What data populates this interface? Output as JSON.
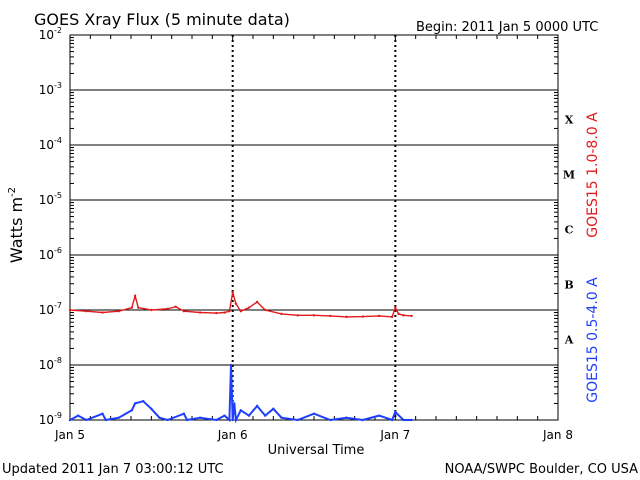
{
  "header": {
    "title": "GOES Xray Flux (5 minute data)",
    "begin": "Begin:  2011 Jan 5 0000 UTC"
  },
  "footer": {
    "updated": "Updated 2011 Jan  7 03:00:12 UTC",
    "source": "NOAA/SWPC Boulder, CO USA"
  },
  "chart_data": {
    "type": "line",
    "title": "GOES Xray Flux (5 minute data)",
    "xlabel": "Universal Time",
    "ylabel": "Watts m",
    "ylabel_exp": "-2",
    "yscale": "log",
    "ylim": [
      1e-09,
      0.01
    ],
    "xlim_days": [
      0,
      3
    ],
    "x_ticks": [
      {
        "day": 0,
        "label": "Jan 5"
      },
      {
        "day": 1,
        "label": "Jan 6"
      },
      {
        "day": 2,
        "label": "Jan 7"
      },
      {
        "day": 3,
        "label": "Jan 8"
      }
    ],
    "y_ticks": [
      {
        "exp": -2,
        "base": "10",
        "sup": "-2"
      },
      {
        "exp": -3,
        "base": "10",
        "sup": "-3"
      },
      {
        "exp": -4,
        "base": "10",
        "sup": "-4"
      },
      {
        "exp": -5,
        "base": "10",
        "sup": "-5"
      },
      {
        "exp": -6,
        "base": "10",
        "sup": "-6"
      },
      {
        "exp": -7,
        "base": "10",
        "sup": "-7"
      },
      {
        "exp": -8,
        "base": "10",
        "sup": "-8"
      },
      {
        "exp": -9,
        "base": "10",
        "sup": "-9"
      }
    ],
    "flare_classes": [
      {
        "label": "X",
        "exp": -4
      },
      {
        "label": "M",
        "exp": -5
      },
      {
        "label": "C",
        "exp": -6
      },
      {
        "label": "B",
        "exp": -7
      },
      {
        "label": "A",
        "exp": -8
      }
    ],
    "grid": "horizontal lines at each decade; dotted vertical lines at day boundaries",
    "series": [
      {
        "name": "GOES15 1.0-8.0 A",
        "color": "#e31a1c",
        "x_days": [
          0.0,
          0.1,
          0.2,
          0.3,
          0.38,
          0.4,
          0.42,
          0.5,
          0.6,
          0.65,
          0.7,
          0.8,
          0.9,
          0.95,
          0.98,
          1.0,
          1.02,
          1.05,
          1.1,
          1.15,
          1.2,
          1.3,
          1.4,
          1.5,
          1.6,
          1.7,
          1.8,
          1.9,
          1.98,
          2.0,
          2.02,
          2.05,
          2.1
        ],
        "y": [
          1e-07,
          9.5e-08,
          9e-08,
          9.5e-08,
          1.1e-07,
          1.8e-07,
          1.1e-07,
          1e-07,
          1.05e-07,
          1.15e-07,
          9.5e-08,
          9e-08,
          8.8e-08,
          9e-08,
          9.5e-08,
          2.1e-07,
          1.3e-07,
          9.5e-08,
          1.1e-07,
          1.4e-07,
          1e-07,
          8.5e-08,
          8e-08,
          8e-08,
          7.8e-08,
          7.5e-08,
          7.6e-08,
          7.8e-08,
          7.5e-08,
          1.1e-07,
          8.5e-08,
          8e-08,
          7.8e-08
        ]
      },
      {
        "name": "GOES15 0.5-4.0 A",
        "color": "#1f3fff",
        "x_days": [
          0.0,
          0.05,
          0.1,
          0.2,
          0.22,
          0.3,
          0.38,
          0.4,
          0.45,
          0.5,
          0.55,
          0.6,
          0.7,
          0.72,
          0.8,
          0.9,
          0.95,
          0.98,
          0.99,
          1.0,
          1.01,
          1.02,
          1.05,
          1.1,
          1.15,
          1.2,
          1.25,
          1.3,
          1.4,
          1.5,
          1.6,
          1.7,
          1.8,
          1.9,
          1.98,
          2.0,
          2.05,
          2.1
        ],
        "y": [
          1e-09,
          1.2e-09,
          1e-09,
          1.3e-09,
          1e-09,
          1.1e-09,
          1.5e-09,
          2e-09,
          2.2e-09,
          1.6e-09,
          1.1e-09,
          1e-09,
          1.3e-09,
          1e-09,
          1.1e-09,
          1e-09,
          1.2e-09,
          1e-09,
          1e-08,
          1e-09,
          2e-09,
          1e-09,
          1.5e-09,
          1.2e-09,
          1.8e-09,
          1.2e-09,
          1.6e-09,
          1.1e-09,
          1e-09,
          1.3e-09,
          1e-09,
          1.1e-09,
          1e-09,
          1.2e-09,
          1e-09,
          1.4e-09,
          1e-09,
          1e-09
        ]
      }
    ]
  }
}
